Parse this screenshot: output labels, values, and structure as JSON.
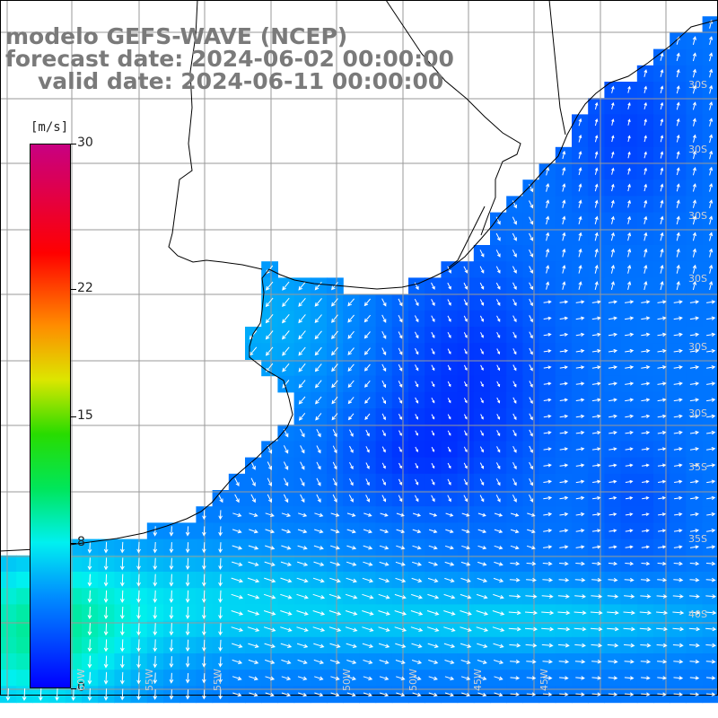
{
  "title": {
    "line1": "modelo GEFS-WAVE (NCEP)",
    "line2": "forecast date: 2024-06-02 00:00:00",
    "line3": "valid date: 2024-06-11 00:00:00"
  },
  "colorbar": {
    "unit": "[m/s]",
    "ticks": [
      {
        "label": "30",
        "value": 30
      },
      {
        "label": "22",
        "value": 22
      },
      {
        "label": "15",
        "value": 15
      },
      {
        "label": "8",
        "value": 8
      },
      {
        "label": "0",
        "value": 0
      }
    ],
    "range": [
      0,
      30
    ]
  },
  "grid": {
    "lat_labels": [
      "30S",
      "35S",
      "40S"
    ],
    "lon_labels": [
      "60W",
      "55W",
      "50W",
      "45W"
    ]
  },
  "colors": {
    "land": "#ffffff",
    "grid_line": "#9a9a9a",
    "coast": "#000000",
    "arrow": "#ffffff",
    "title_text": "#7a7a7a"
  }
}
